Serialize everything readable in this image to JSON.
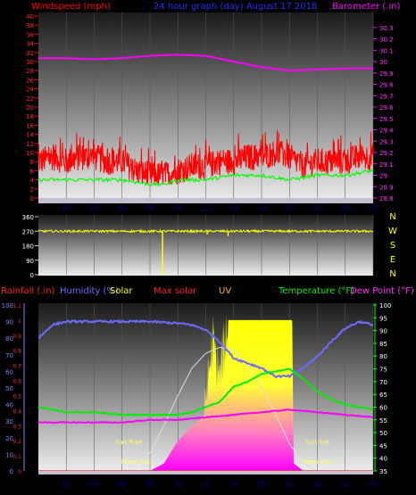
{
  "header": {
    "left": "Windspeed (mph)",
    "center": "24 hour graph (day)  August 17 2018",
    "right": "Barometer (.in)"
  },
  "colors": {
    "wind": "#ff0000",
    "gust_base": "#00ff00",
    "barometer": "#ff00ff",
    "wind_dir": "#ffff00",
    "rain": "#8080ff",
    "humidity": "#6b6bff",
    "solar": "#ffff00",
    "max_solar": "#dddddd",
    "uv": "#ff00ff",
    "temperature": "#00ee00",
    "dew_point": "#ff00ff",
    "axis_left": "#ff2020",
    "axis_right": "#ff30ff",
    "axis_green": "#00ff00",
    "axis_blue": "#8080ff",
    "time_axis": "#000080",
    "compass": "#ffff00"
  },
  "time_labels": [
    "02",
    "04",
    "06",
    "08",
    "10",
    "12",
    "14",
    "16",
    "18",
    "20",
    "22",
    "00"
  ],
  "chart_data": [
    {
      "type": "line",
      "title": "24 hour graph (day)  August 17 2018",
      "series": [
        {
          "name": "Windspeed (mph)",
          "axis": "left",
          "hours": [
            0,
            1,
            2,
            3,
            4,
            5,
            6,
            7,
            8,
            9,
            10,
            11,
            12,
            13,
            14,
            15,
            16,
            17,
            18,
            19,
            20,
            21,
            22,
            23,
            24
          ],
          "values": [
            8,
            9,
            8,
            9,
            9,
            8,
            8,
            6,
            5,
            5,
            6,
            7,
            7,
            8,
            8,
            9,
            9,
            10,
            9,
            7,
            8,
            8,
            8,
            9,
            9
          ]
        },
        {
          "name": "Gust baseline",
          "axis": "left",
          "hours": [
            0,
            2,
            4,
            6,
            8,
            9,
            10,
            12,
            14,
            16,
            18,
            20,
            22,
            24
          ],
          "values": [
            4,
            4,
            4,
            4,
            3,
            3,
            4,
            4,
            5,
            5,
            4,
            5,
            5,
            6
          ]
        },
        {
          "name": "Barometer (.in)",
          "axis": "right",
          "hours": [
            0,
            2,
            4,
            6,
            8,
            10,
            12,
            14,
            16,
            18,
            20,
            22,
            24
          ],
          "values": [
            30.03,
            30.03,
            30.02,
            30.03,
            30.05,
            30.06,
            30.05,
            30.0,
            29.95,
            29.92,
            29.93,
            29.94,
            29.94
          ]
        }
      ],
      "left_axis": {
        "label": "Windspeed (mph)",
        "ylim": [
          0,
          40
        ],
        "ticks": [
          "0",
          "2",
          "4",
          "6",
          "8",
          "10",
          "12",
          "14",
          "16",
          "18",
          "20",
          "22",
          "24",
          "26",
          "28",
          "30",
          "32",
          "34",
          "36",
          "38",
          "40"
        ]
      },
      "right_axis": {
        "label": "Barometer (.in)",
        "ylim": [
          28.8,
          30.4
        ],
        "ticks": [
          "28.8",
          "28.9",
          "29",
          "29.1",
          "29.2",
          "29.3",
          "29.4",
          "29.5",
          "29.6",
          "29.7",
          "29.8",
          "29.9",
          "30",
          "30.1",
          "30.2",
          "30.3"
        ]
      },
      "x_ticks": [
        "02",
        "04",
        "06",
        "08",
        "10",
        "12",
        "14",
        "16",
        "18",
        "20",
        "22",
        "00"
      ]
    },
    {
      "type": "line",
      "series": [
        {
          "name": "Wind direction",
          "hours": [
            0,
            4,
            8,
            9,
            9.2,
            12,
            13.5,
            16,
            20,
            24
          ],
          "values": [
            270,
            270,
            270,
            270,
            270,
            270,
            270,
            270,
            270,
            270
          ]
        },
        {
          "name": "Direction spikes",
          "hours": [
            8.9,
            12.1,
            13.6
          ],
          "values": [
            0,
            250,
            240
          ]
        }
      ],
      "left_axis": {
        "ylim": [
          0,
          360
        ],
        "ticks": [
          "0",
          "90",
          "180",
          "270",
          "360"
        ]
      },
      "compass": [
        "N",
        "W",
        "S",
        "E",
        "N"
      ]
    },
    {
      "type": "area",
      "legend": [
        "Rainfall (.in)",
        "Humidity (%)",
        "Solar",
        "Max solar",
        "UV",
        "Temperature (°F)",
        "Dew Point (°F)"
      ],
      "series": [
        {
          "name": "Humidity (%)",
          "axis": "humidity",
          "hours": [
            0,
            1,
            2,
            3,
            4,
            6,
            8,
            10,
            11,
            12,
            13,
            14,
            15,
            16,
            17,
            18,
            19,
            20,
            21,
            22,
            23,
            24
          ],
          "values": [
            80,
            88,
            90,
            90,
            90,
            90,
            90,
            89,
            88,
            85,
            78,
            68,
            65,
            62,
            57,
            57,
            62,
            69,
            78,
            86,
            90,
            88
          ]
        },
        {
          "name": "Temperature (°F)",
          "axis": "temp",
          "hours": [
            0,
            1,
            2,
            4,
            6,
            8,
            10,
            11,
            12,
            13,
            14,
            15,
            16,
            17,
            18,
            19,
            20,
            21,
            22,
            23,
            24
          ],
          "values": [
            60,
            59,
            58,
            58,
            57,
            57,
            57,
            58,
            60,
            62,
            68,
            70,
            73,
            74,
            75,
            71,
            66,
            63,
            61,
            60,
            59
          ]
        },
        {
          "name": "Dew Point (°F)",
          "axis": "temp",
          "hours": [
            0,
            2,
            4,
            6,
            8,
            10,
            12,
            14,
            16,
            18,
            20,
            22,
            24
          ],
          "values": [
            54,
            54,
            54,
            54,
            55,
            55,
            56,
            57,
            58,
            59,
            58,
            57,
            56
          ]
        },
        {
          "name": "Max solar",
          "axis": "rain",
          "hours": [
            6.5,
            8,
            9,
            10,
            11,
            12,
            13,
            14,
            15,
            16,
            17,
            18,
            19,
            20
          ],
          "values": [
            0.0,
            0.12,
            0.3,
            0.5,
            0.68,
            0.78,
            0.82,
            0.8,
            0.7,
            0.55,
            0.38,
            0.18,
            0.05,
            0.0
          ]
        },
        {
          "name": "Solar",
          "axis": "rain",
          "hours": [
            8,
            9,
            10,
            11,
            11.8,
            12,
            12.5,
            13,
            13.2,
            13.5,
            14,
            15,
            16,
            17,
            17.5,
            18,
            18.2,
            18.3,
            19
          ],
          "values": [
            0.0,
            0.05,
            0.2,
            0.3,
            0.35,
            0.5,
            0.9,
            0.65,
            0.8,
            1.0,
            1.0,
            1.0,
            1.0,
            1.0,
            1.0,
            1.0,
            1.0,
            0.05,
            0.0
          ]
        },
        {
          "name": "Rainfall (.in)",
          "axis": "rain",
          "hours": [
            0,
            24
          ],
          "values": [
            0,
            0
          ]
        }
      ],
      "axes": {
        "rain": {
          "label": "Rainfall (.in)",
          "ylim": [
            0,
            1.1
          ],
          "ticks": [
            "0",
            "0.1",
            "0.2",
            "0.3",
            "0.4",
            "0.5",
            "0.6",
            "0.7",
            "0.8",
            "0.9",
            "1",
            "1.1"
          ]
        },
        "humidity": {
          "label": "Humidity (%)",
          "ylim": [
            0,
            100
          ],
          "ticks": [
            "0",
            "10",
            "20",
            "30",
            "40",
            "50",
            "60",
            "70",
            "80",
            "90",
            "100"
          ]
        },
        "temp": {
          "label": "Temperature (°F)",
          "ylim": [
            35,
            100
          ],
          "ticks": [
            "35",
            "40",
            "45",
            "50",
            "55",
            "60",
            "65",
            "70",
            "75",
            "80",
            "85",
            "90",
            "95",
            "100"
          ]
        }
      },
      "annotations": [
        {
          "text": "Sun Rise",
          "hour": 6.6
        },
        {
          "text": "Moon Set",
          "hour": 7.0
        },
        {
          "text": "Sun Set",
          "hour": 20.0
        },
        {
          "text": "Moon Rise",
          "hour": 20.0
        }
      ],
      "x_ticks": [
        "02",
        "04",
        "06",
        "08",
        "10",
        "12",
        "14",
        "16",
        "18",
        "20",
        "22",
        "00"
      ]
    }
  ]
}
